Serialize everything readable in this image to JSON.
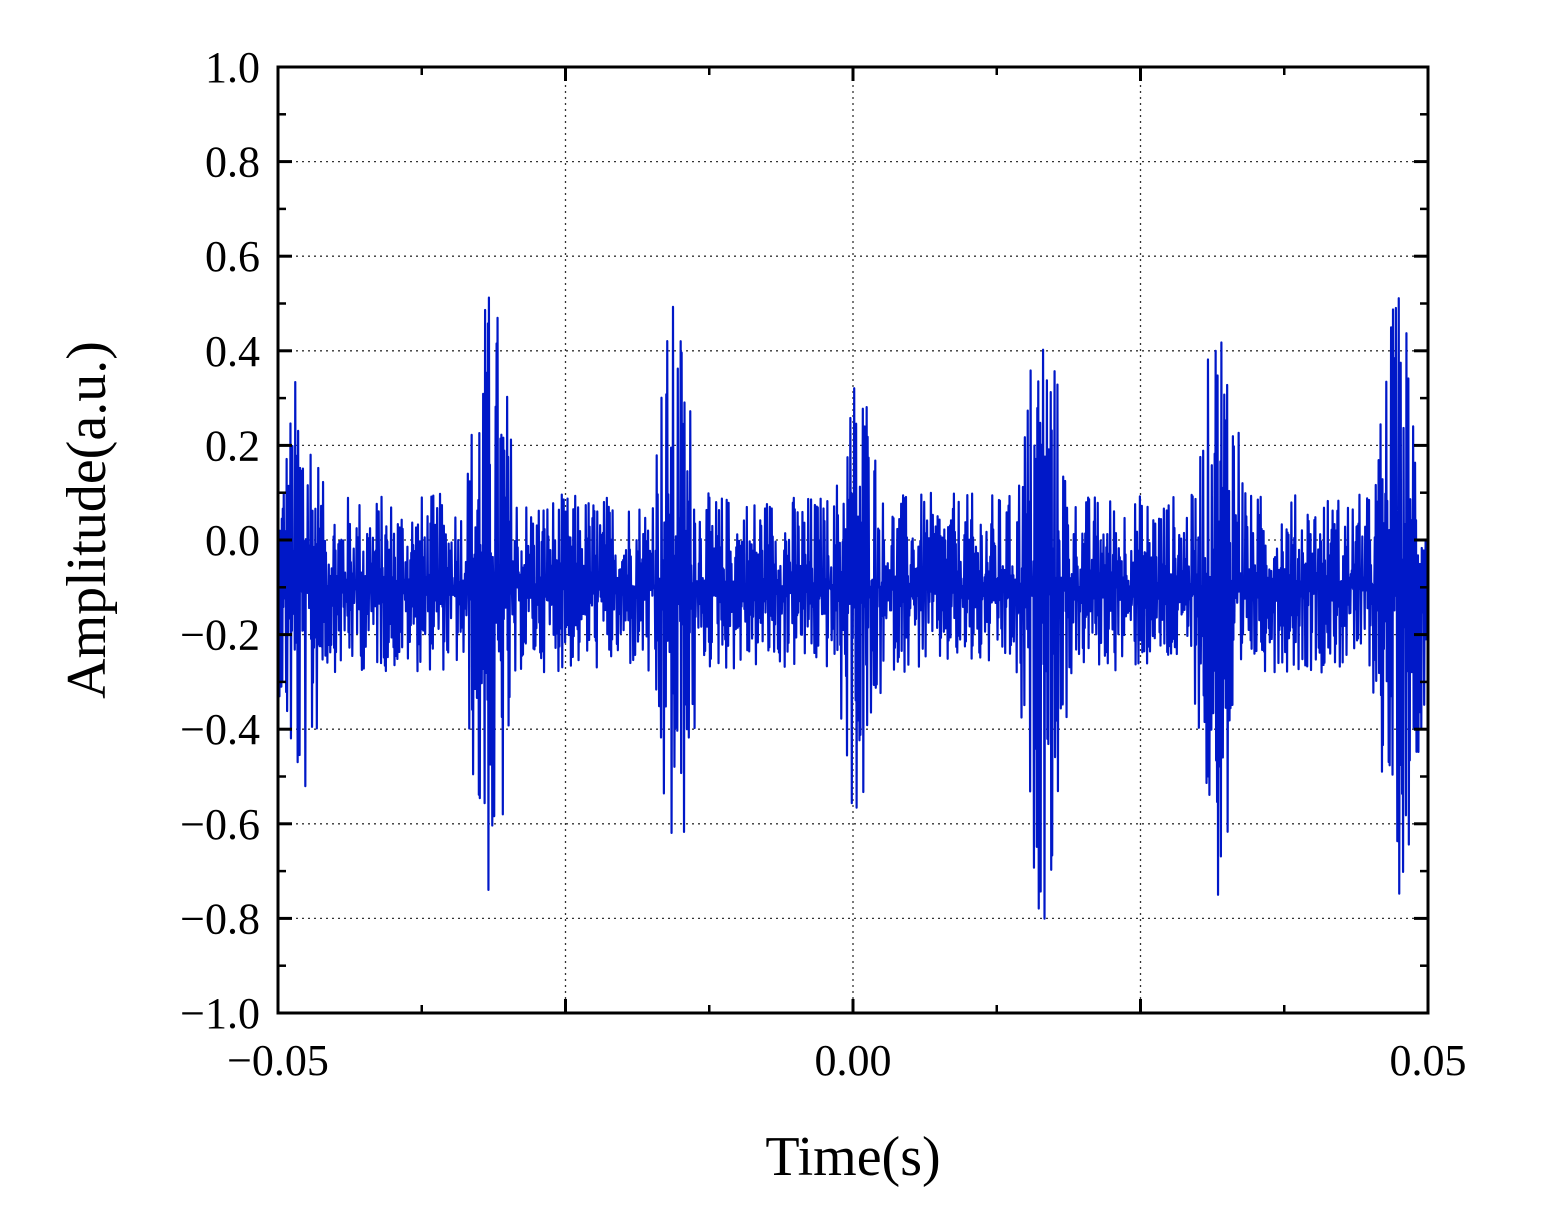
{
  "chart_data": {
    "type": "line",
    "title": "",
    "xlabel": "Time(s)",
    "ylabel": "Amplitude(a.u.)",
    "xlim": [
      -0.05,
      0.05
    ],
    "ylim": [
      -1.0,
      1.0
    ],
    "x_ticks": [
      -0.05,
      -0.025,
      0.0,
      0.025,
      0.05
    ],
    "x_tick_labels": [
      "−0.05",
      "",
      "0.00",
      "",
      "0.05"
    ],
    "y_ticks": [
      -1.0,
      -0.8,
      -0.6,
      -0.4,
      -0.2,
      0.0,
      0.2,
      0.4,
      0.6,
      0.8,
      1.0
    ],
    "y_tick_labels": [
      "−1.0",
      "−0.8",
      "−0.6",
      "−0.4",
      "−0.2",
      "0.0",
      "0.2",
      "0.4",
      "0.6",
      "0.8",
      "1.0"
    ],
    "grid": true,
    "grid_style": "dotted",
    "legend": "none",
    "line_color": "#0018c8",
    "series": [
      {
        "baseline": -0.1,
        "sample_count": 2400,
        "bursts": [
          {
            "t": -0.048,
            "max": 0.38,
            "min": -0.58
          },
          {
            "t": -0.0315,
            "max": 0.56,
            "min": -0.79
          },
          {
            "t": -0.0155,
            "max": 0.52,
            "min": -0.74
          },
          {
            "t": 0.0005,
            "max": 0.4,
            "min": -0.62
          },
          {
            "t": 0.0165,
            "max": 0.54,
            "min": -0.81
          },
          {
            "t": 0.032,
            "max": 0.54,
            "min": -0.81
          },
          {
            "t": 0.0475,
            "max": 0.55,
            "min": -0.76
          }
        ],
        "noise_range": [
          -0.28,
          0.1
        ]
      }
    ]
  }
}
